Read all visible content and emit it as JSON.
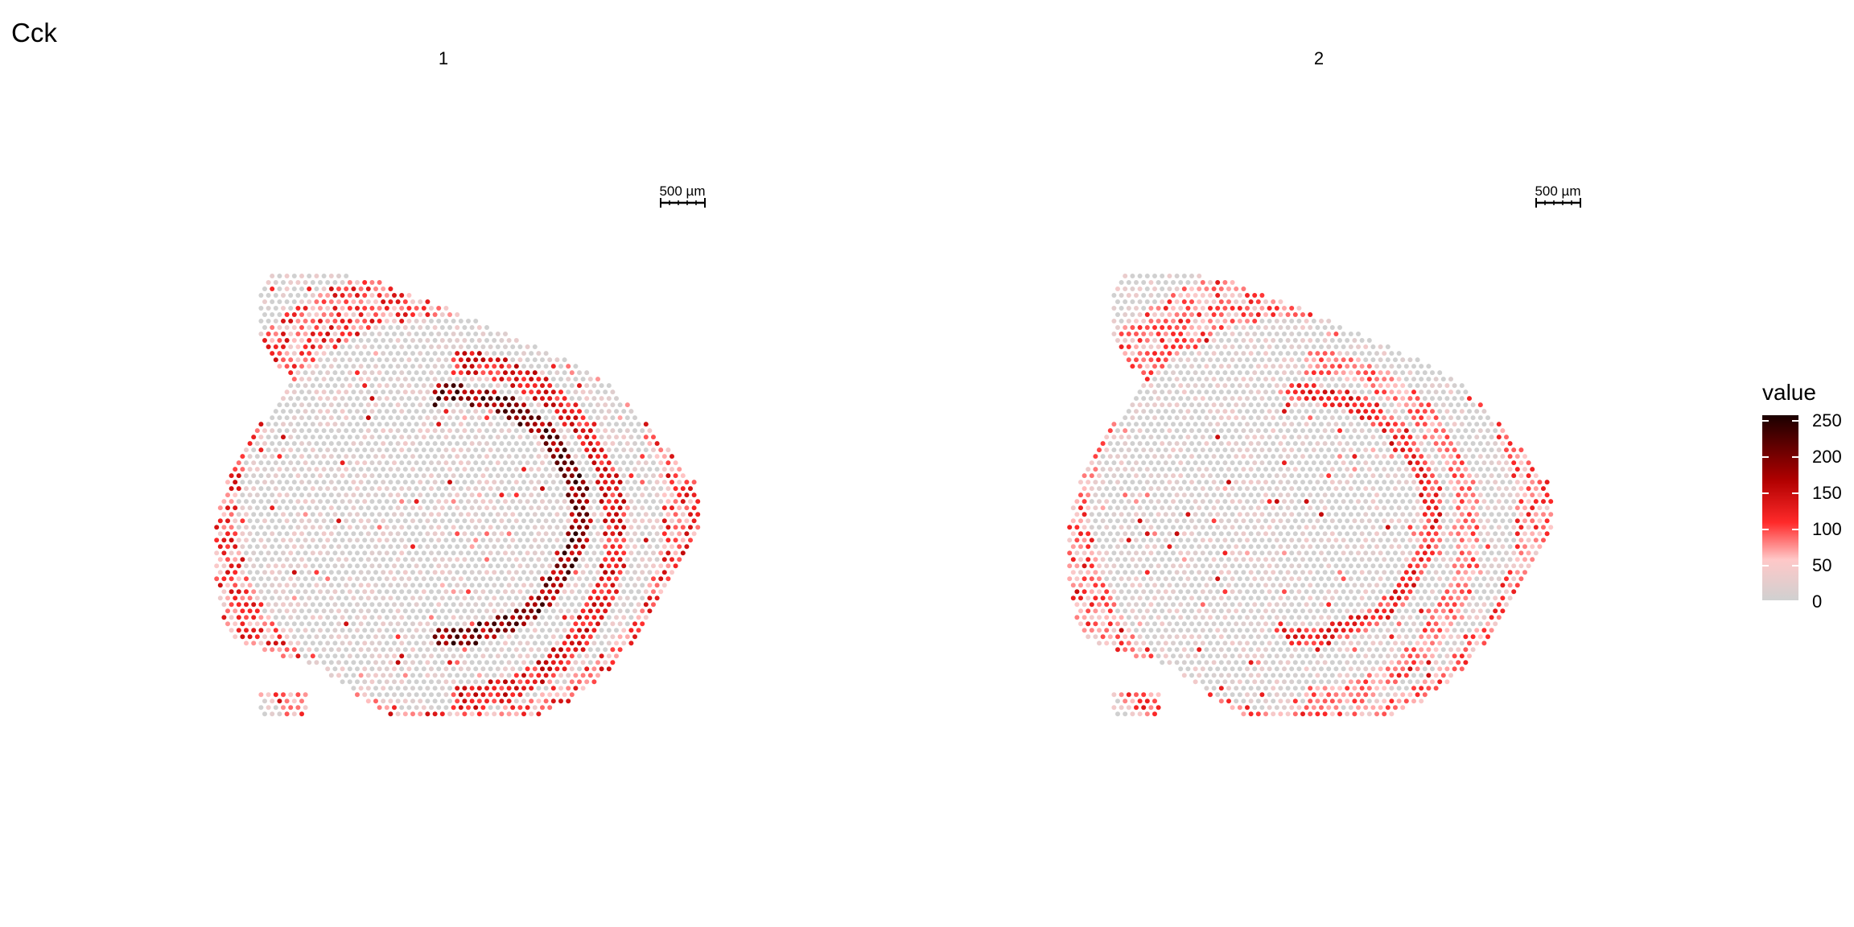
{
  "title": "Cck",
  "panels": [
    "1",
    "2"
  ],
  "scale_bar_label": "500 µm",
  "legend": {
    "title": "value",
    "ticks": [
      "250",
      "200",
      "150",
      "100",
      "50",
      "0"
    ]
  },
  "colors": {
    "low": "#d0d0d0",
    "mid_low": "#ffc8c8",
    "mid": "#ff2a2a",
    "high": "#b00000",
    "max": "#1a0000"
  },
  "chart_data": [
    {
      "type": "scatter",
      "panel": "1",
      "title": "1",
      "value_range": [
        0,
        260
      ],
      "spot_layout": "hexagonal spatial transcriptomics grid (mouse brain section)",
      "expression_pattern": "high in layered band along dentate gyrus / hippocampal arc and upper cortical rim; max ~250",
      "max_value": 250
    },
    {
      "type": "scatter",
      "panel": "2",
      "title": "2",
      "value_range": [
        0,
        260
      ],
      "spot_layout": "hexagonal spatial transcriptomics grid (mouse brain section)",
      "expression_pattern": "moderate along upper cortical rim and thin hippocampal arc; max ~250",
      "max_value": 250
    }
  ]
}
